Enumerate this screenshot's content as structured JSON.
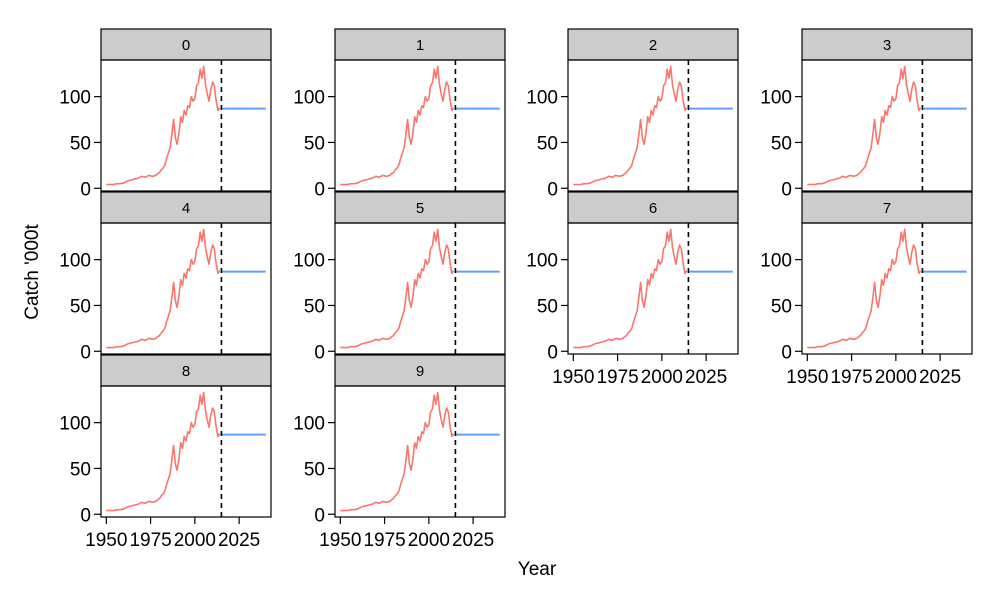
{
  "chart_data": {
    "type": "line",
    "facets": [
      "0",
      "1",
      "2",
      "3",
      "4",
      "5",
      "6",
      "7",
      "8",
      "9"
    ],
    "xlabel": "Year",
    "ylabel": "Catch '000t",
    "xlim": [
      1947,
      2043
    ],
    "ylim": [
      -3,
      140
    ],
    "xticks": [
      1950,
      1975,
      2000,
      2025
    ],
    "xtick_labels": [
      "1950",
      "1975",
      "2000",
      "2025"
    ],
    "yticks": [
      0,
      50,
      100
    ],
    "ytick_labels": [
      "0",
      "50",
      "100"
    ],
    "vline": 2015,
    "colors": {
      "historical": "#F8766D",
      "projection": "#619CFF",
      "strip": "#CCCCCC"
    },
    "series": [
      {
        "role": "historical",
        "x": [
          1950,
          1952,
          1954,
          1956,
          1958,
          1960,
          1962,
          1964,
          1966,
          1968,
          1969,
          1970,
          1972,
          1973,
          1974,
          1976,
          1978,
          1979,
          1980,
          1981,
          1982,
          1983,
          1984,
          1985,
          1986,
          1987,
          1988,
          1989,
          1990,
          1991,
          1992,
          1993,
          1994,
          1995,
          1996,
          1997,
          1998,
          1999,
          2000,
          2001,
          2002,
          2003,
          2004,
          2005,
          2006,
          2007,
          2008,
          2009,
          2010,
          2011,
          2012,
          2013,
          2014
        ],
        "y": [
          4,
          4,
          4,
          5,
          5,
          6,
          8,
          9,
          10,
          11,
          12,
          13,
          12,
          13,
          14,
          13,
          14,
          16,
          17,
          20,
          22,
          25,
          32,
          38,
          44,
          58,
          75,
          55,
          48,
          60,
          78,
          72,
          85,
          80,
          90,
          88,
          100,
          95,
          98,
          112,
          115,
          130,
          120,
          133,
          113,
          103,
          95,
          108,
          116,
          112,
          96,
          85,
          88
        ]
      },
      {
        "role": "projection",
        "x": [
          2015,
          2040
        ],
        "y": [
          87,
          87
        ]
      }
    ]
  }
}
